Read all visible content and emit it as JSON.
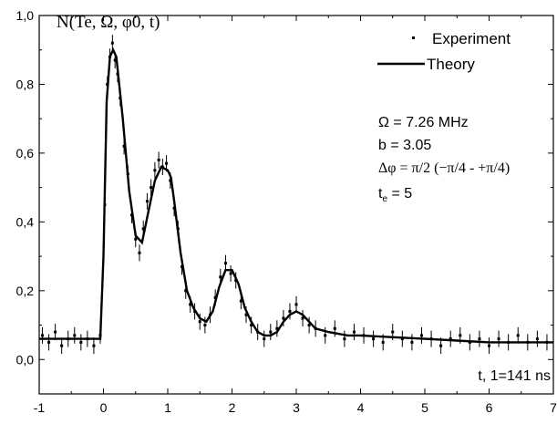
{
  "chart_data": {
    "type": "scatter",
    "title": "N(Te, Ω, φ0, t)",
    "xlabel": "t, 1=141 ns",
    "ylabel": "",
    "xlim": [
      -1,
      7
    ],
    "ylim": [
      -0.1,
      1.0
    ],
    "x_ticks": [
      "-1",
      "0",
      "1",
      "2",
      "3",
      "4",
      "5",
      "6",
      "7"
    ],
    "y_ticks": [
      "0,0",
      "0,2",
      "0,4",
      "0,6",
      "0,8",
      "1,0"
    ],
    "legend": {
      "position": "top-right",
      "experiment_label": "Experiment",
      "theory_label": "Theory"
    },
    "annotations": {
      "omega": "Ω = 7.26 MHz",
      "b": "b = 3.05",
      "dphi": "Δφ = π/2 (−π/4 - +π/4)",
      "te_name": "t",
      "te_sub": "e",
      "te_value": " = 5"
    },
    "theory": {
      "name": "Theory",
      "x": [
        -1.0,
        -0.05,
        0.0,
        0.05,
        0.1,
        0.15,
        0.2,
        0.3,
        0.4,
        0.5,
        0.6,
        0.7,
        0.8,
        0.9,
        1.0,
        1.05,
        1.1,
        1.2,
        1.3,
        1.4,
        1.5,
        1.6,
        1.7,
        1.8,
        1.9,
        2.0,
        2.1,
        2.2,
        2.3,
        2.4,
        2.5,
        2.6,
        2.7,
        2.8,
        2.9,
        3.0,
        3.1,
        3.2,
        3.3,
        3.5,
        3.8,
        4.0,
        4.5,
        5.0,
        5.5,
        6.0,
        6.5,
        7.0
      ],
      "y": [
        0.06,
        0.06,
        0.3,
        0.75,
        0.88,
        0.9,
        0.88,
        0.7,
        0.49,
        0.36,
        0.34,
        0.43,
        0.52,
        0.56,
        0.55,
        0.53,
        0.46,
        0.31,
        0.2,
        0.15,
        0.12,
        0.11,
        0.14,
        0.21,
        0.26,
        0.26,
        0.22,
        0.15,
        0.11,
        0.08,
        0.07,
        0.07,
        0.08,
        0.11,
        0.13,
        0.14,
        0.13,
        0.11,
        0.09,
        0.08,
        0.07,
        0.07,
        0.065,
        0.06,
        0.055,
        0.05,
        0.05,
        0.05
      ]
    },
    "experiment": {
      "name": "Experiment",
      "x": [
        -0.95,
        -0.85,
        -0.75,
        -0.65,
        -0.55,
        -0.45,
        -0.35,
        -0.25,
        -0.15,
        -0.05,
        0.02,
        0.06,
        0.1,
        0.14,
        0.18,
        0.22,
        0.26,
        0.32,
        0.38,
        0.44,
        0.5,
        0.56,
        0.62,
        0.68,
        0.74,
        0.8,
        0.86,
        0.92,
        0.98,
        1.04,
        1.1,
        1.16,
        1.22,
        1.28,
        1.35,
        1.42,
        1.5,
        1.58,
        1.66,
        1.74,
        1.82,
        1.9,
        1.98,
        2.06,
        2.14,
        2.22,
        2.3,
        2.4,
        2.5,
        2.6,
        2.7,
        2.8,
        2.9,
        3.0,
        3.1,
        3.2,
        3.3,
        3.45,
        3.6,
        3.75,
        3.9,
        4.05,
        4.2,
        4.35,
        4.5,
        4.65,
        4.8,
        4.95,
        5.1,
        5.25,
        5.4,
        5.55,
        5.7,
        5.85,
        6.0,
        6.15,
        6.3,
        6.45,
        6.6,
        6.75,
        6.9
      ],
      "y": [
        0.07,
        0.05,
        0.08,
        0.04,
        0.06,
        0.07,
        0.05,
        0.06,
        0.04,
        0.07,
        0.45,
        0.8,
        0.88,
        0.92,
        0.87,
        0.83,
        0.76,
        0.62,
        0.54,
        0.42,
        0.35,
        0.31,
        0.38,
        0.46,
        0.5,
        0.55,
        0.58,
        0.56,
        0.57,
        0.52,
        0.44,
        0.38,
        0.27,
        0.2,
        0.16,
        0.14,
        0.11,
        0.1,
        0.13,
        0.18,
        0.24,
        0.28,
        0.25,
        0.23,
        0.17,
        0.13,
        0.1,
        0.08,
        0.06,
        0.08,
        0.09,
        0.12,
        0.14,
        0.16,
        0.12,
        0.1,
        0.09,
        0.07,
        0.09,
        0.06,
        0.08,
        0.07,
        0.06,
        0.05,
        0.08,
        0.06,
        0.05,
        0.07,
        0.06,
        0.04,
        0.06,
        0.07,
        0.05,
        0.06,
        0.04,
        0.06,
        0.05,
        0.07,
        0.05,
        0.06,
        0.05
      ]
    }
  }
}
